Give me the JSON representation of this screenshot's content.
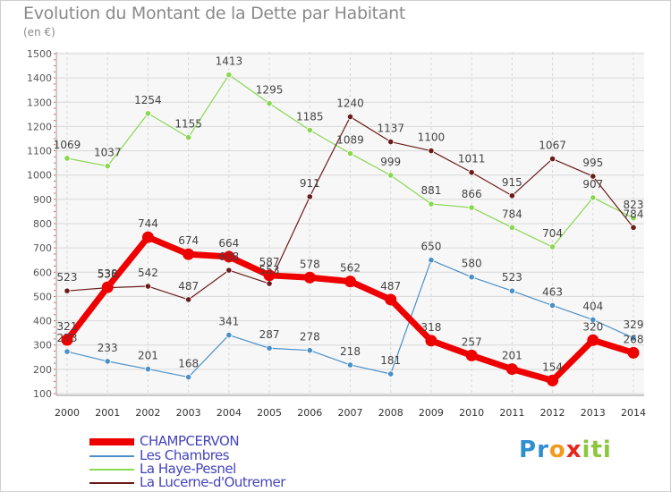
{
  "title": "Evolution du Montant de la Dette par Habitant",
  "subtitle": "(en €)",
  "logo": {
    "text": "Proxiti",
    "letters": [
      {
        "ch": "P",
        "color": "#2f8fd0"
      },
      {
        "ch": "r",
        "color": "#2f8fd0"
      },
      {
        "ch": "o",
        "color": "#f29a1c"
      },
      {
        "ch": "x",
        "color": "#e8261c"
      },
      {
        "ch": "i",
        "color": "#8cc63f"
      },
      {
        "ch": "t",
        "color": "#8cc63f"
      },
      {
        "ch": "i",
        "color": "#8cc63f"
      }
    ]
  },
  "chart_data": {
    "type": "line",
    "x": [
      "2000",
      "2001",
      "2002",
      "2003",
      "2004",
      "2005",
      "2006",
      "2007",
      "2008",
      "2009",
      "2010",
      "2011",
      "2012",
      "2013",
      "2014"
    ],
    "ylim": [
      100,
      1500
    ],
    "yticks": [
      "100",
      "200",
      "300",
      "400",
      "500",
      "600",
      "700",
      "800",
      "900",
      "1000",
      "1100",
      "1200",
      "1300",
      "1400",
      "1500"
    ],
    "grid": true,
    "legend_position": "bottom-left",
    "series": [
      {
        "name": "CHAMPCERVON",
        "color": "#ee0000",
        "values": [
          321,
          538,
          744,
          674,
          664,
          587,
          578,
          562,
          487,
          318,
          257,
          201,
          154,
          320,
          268
        ],
        "labels": [
          "321",
          "538",
          "744",
          "674",
          "664",
          "587",
          "578",
          "562",
          "487",
          "318",
          "257",
          "201",
          "154",
          "320",
          "268"
        ]
      },
      {
        "name": "Les Chambres",
        "color": "#4a90c8",
        "values": [
          273,
          233,
          201,
          168,
          341,
          287,
          278,
          218,
          181,
          650,
          580,
          523,
          463,
          404,
          329
        ],
        "labels": [
          "273",
          "233",
          "201",
          "168",
          "341",
          "287",
          "278",
          "218",
          "181",
          "650",
          "580",
          "523",
          "463",
          "404",
          "329"
        ]
      },
      {
        "name": "La Haye-Pesnel",
        "color": "#88d850",
        "values": [
          1069,
          1037,
          1254,
          1155,
          1413,
          1295,
          1185,
          1089,
          999,
          881,
          866,
          784,
          704,
          907,
          823
        ],
        "labels": [
          "1069",
          "1037",
          "1254",
          "1155",
          "1413",
          "1295",
          "1185",
          "1089",
          "999",
          "881",
          "866",
          "784",
          "704",
          "907",
          "823"
        ]
      },
      {
        "name": "La Lucerne-d'Outremer",
        "color": "#6b1c1c",
        "values": [
          523,
          536,
          542,
          487,
          608,
          553,
          911,
          1240,
          1137,
          1100,
          1011,
          915,
          1067,
          995,
          784
        ],
        "labels": [
          "523",
          "536",
          "542",
          "487",
          "608",
          "553",
          "911",
          "1240",
          "1137",
          "1100",
          "1011",
          "915",
          "1067",
          "995",
          "784"
        ]
      }
    ]
  }
}
